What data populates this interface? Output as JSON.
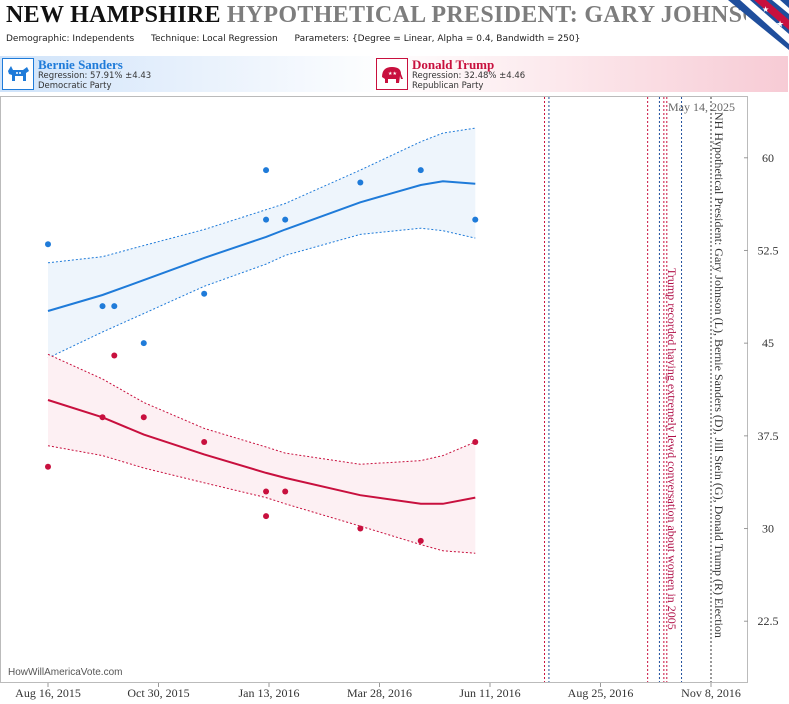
{
  "header": {
    "state": "NEW HAMPSHIRE",
    "title_rest": "HYPOTHETICAL PRESIDENT:  GARY JOHNSON",
    "demographic": "Demographic: Independents",
    "technique": "Technique: Local Regression",
    "parameters": "Parameters: {Degree = Linear, Alpha = 0.4, Bandwidth = 250}"
  },
  "candidates": {
    "dem": {
      "name": "Bernie Sanders",
      "regression": "Regression: 57.91% ±4.43",
      "party": "Democratic Party",
      "color": "#1f7bd9"
    },
    "rep": {
      "name": "Donald Trump",
      "regression": "Regression: 32.48% ±4.46",
      "party": "Republican Party",
      "color": "#c8103e"
    }
  },
  "watermark": "HowWillAmericaVote.com",
  "date_label": "May 14, 2025",
  "side_label": "NH Hypothetical President: Gary Johnson (L), Bernie Sanders (D), Jill Stein (G), Donald Trump (R) Election",
  "event_label": "Trump recorded having extremely lewd conversation about women in 2005",
  "chart_data": {
    "type": "scatter",
    "x_start": "2015-08-16",
    "x_end": "2016-11-08",
    "xtick_labels": [
      "Aug 16, 2015",
      "Oct 30, 2015",
      "Jan 13, 2016",
      "Mar 28, 2016",
      "Jun 11, 2016",
      "Aug 25, 2016",
      "Nov 8, 2016"
    ],
    "ytick_labels": [
      "22.5",
      "30",
      "37.5",
      "45",
      "52.5",
      "60"
    ],
    "ylim": [
      17.5,
      65
    ],
    "grid": false,
    "series": [
      {
        "name": "Bernie Sanders",
        "color": "#1f7bd9",
        "band_fill": "#eef5fc",
        "points": [
          [
            "2015-08-16",
            53
          ],
          [
            "2015-09-22",
            48
          ],
          [
            "2015-09-30",
            48
          ],
          [
            "2015-10-20",
            45
          ],
          [
            "2015-11-30",
            49
          ],
          [
            "2016-01-11",
            59
          ],
          [
            "2016-01-11",
            55
          ],
          [
            "2016-01-24",
            55
          ],
          [
            "2016-03-15",
            58
          ],
          [
            "2016-04-25",
            59
          ],
          [
            "2016-06-01",
            55
          ]
        ],
        "trend": [
          [
            "2015-08-16",
            47.6
          ],
          [
            "2015-09-22",
            48.9
          ],
          [
            "2015-10-20",
            50.1
          ],
          [
            "2015-11-30",
            51.9
          ],
          [
            "2016-01-11",
            53.6
          ],
          [
            "2016-01-24",
            54.2
          ],
          [
            "2016-03-15",
            56.4
          ],
          [
            "2016-04-25",
            57.8
          ],
          [
            "2016-05-10",
            58.1
          ],
          [
            "2016-06-01",
            57.9
          ]
        ],
        "upper": [
          [
            "2015-08-16",
            51.5
          ],
          [
            "2015-09-22",
            52.0
          ],
          [
            "2015-10-20",
            52.9
          ],
          [
            "2015-11-30",
            54.2
          ],
          [
            "2016-01-11",
            55.8
          ],
          [
            "2016-01-24",
            56.3
          ],
          [
            "2016-03-15",
            59.0
          ],
          [
            "2016-04-25",
            61.3
          ],
          [
            "2016-05-10",
            62.0
          ],
          [
            "2016-06-01",
            62.4
          ]
        ],
        "lower": [
          [
            "2015-08-16",
            43.8
          ],
          [
            "2015-09-22",
            45.9
          ],
          [
            "2015-10-20",
            47.4
          ],
          [
            "2015-11-30",
            49.6
          ],
          [
            "2016-01-11",
            51.4
          ],
          [
            "2016-01-24",
            52.1
          ],
          [
            "2016-03-15",
            53.8
          ],
          [
            "2016-04-25",
            54.3
          ],
          [
            "2016-05-10",
            54.1
          ],
          [
            "2016-06-01",
            53.5
          ]
        ]
      },
      {
        "name": "Donald Trump",
        "color": "#c8103e",
        "band_fill": "#fdf0f3",
        "points": [
          [
            "2015-08-16",
            35
          ],
          [
            "2015-09-22",
            39
          ],
          [
            "2015-09-30",
            44
          ],
          [
            "2015-10-20",
            39
          ],
          [
            "2015-11-30",
            37
          ],
          [
            "2016-01-11",
            33
          ],
          [
            "2016-01-11",
            31
          ],
          [
            "2016-01-24",
            33
          ],
          [
            "2016-03-15",
            30
          ],
          [
            "2016-04-25",
            29
          ],
          [
            "2016-06-01",
            37
          ]
        ],
        "trend": [
          [
            "2015-08-16",
            40.4
          ],
          [
            "2015-09-22",
            39.0
          ],
          [
            "2015-10-20",
            37.6
          ],
          [
            "2015-11-30",
            36.0
          ],
          [
            "2016-01-11",
            34.5
          ],
          [
            "2016-01-24",
            34.1
          ],
          [
            "2016-03-15",
            32.7
          ],
          [
            "2016-04-25",
            32.0
          ],
          [
            "2016-05-10",
            32.0
          ],
          [
            "2016-06-01",
            32.5
          ]
        ],
        "upper": [
          [
            "2015-08-16",
            44.1
          ],
          [
            "2015-09-22",
            42.1
          ],
          [
            "2015-10-20",
            40.2
          ],
          [
            "2015-11-30",
            38.1
          ],
          [
            "2016-01-11",
            36.6
          ],
          [
            "2016-01-24",
            36.1
          ],
          [
            "2016-03-15",
            35.2
          ],
          [
            "2016-04-25",
            35.5
          ],
          [
            "2016-05-10",
            35.9
          ],
          [
            "2016-06-01",
            37.0
          ]
        ],
        "lower": [
          [
            "2015-08-16",
            36.7
          ],
          [
            "2015-09-22",
            35.9
          ],
          [
            "2015-10-20",
            34.9
          ],
          [
            "2015-11-30",
            33.7
          ],
          [
            "2016-01-11",
            32.5
          ],
          [
            "2016-01-24",
            32.0
          ],
          [
            "2016-03-15",
            30.2
          ],
          [
            "2016-04-25",
            28.7
          ],
          [
            "2016-05-10",
            28.2
          ],
          [
            "2016-06-01",
            28.0
          ]
        ]
      }
    ],
    "event_lines": [
      {
        "date": "2016-07-18",
        "color": "#c8103e"
      },
      {
        "date": "2016-07-21",
        "color": "#1f4e9c"
      },
      {
        "date": "2016-09-26",
        "color": "#c8103e"
      },
      {
        "date": "2016-10-04",
        "color": "#1f4e9c"
      },
      {
        "date": "2016-10-07",
        "color": "#c8103e"
      },
      {
        "date": "2016-10-09",
        "color": "#c8103e"
      },
      {
        "date": "2016-10-19",
        "color": "#1f4e9c"
      },
      {
        "date": "2016-11-08",
        "color": "#333333"
      }
    ]
  }
}
